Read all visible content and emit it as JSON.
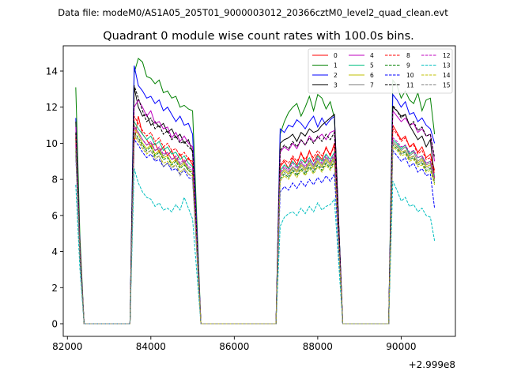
{
  "header": {
    "data_file": "Data file: modeM0/AS1A05_205T01_9000003012_20366cztM0_level2_quad_clean.evt"
  },
  "chart_data": {
    "type": "line",
    "title": "Quadrant 0 module wise count rates with 100.0s bins.",
    "xlabel": "",
    "ylabel": "",
    "x_offset_label": "+2.999e8",
    "xlim": [
      81900,
      91300
    ],
    "ylim": [
      -0.7,
      15.4
    ],
    "xticks": [
      82000,
      84000,
      86000,
      88000,
      90000
    ],
    "xtick_labels": [
      "82000",
      "84000",
      "86000",
      "88000",
      "90000"
    ],
    "yticks": [
      0,
      2,
      4,
      6,
      8,
      10,
      12,
      14
    ],
    "ytick_labels": [
      "0",
      "2",
      "4",
      "6",
      "8",
      "10",
      "12",
      "14"
    ],
    "grid": false,
    "legend_position": "top-right",
    "segments": [
      {
        "start": 82200,
        "n": 2,
        "gap_before": null
      },
      {
        "start": 83600,
        "n": 15,
        "gap_before": [
          82400,
          83500
        ]
      },
      {
        "start": 87100,
        "n": 14,
        "gap_before": [
          85200,
          87000
        ]
      },
      {
        "start": 89800,
        "n": 11,
        "gap_before": [
          88600,
          89700
        ]
      }
    ],
    "series": [
      {
        "name": "0",
        "color": "#ff0000",
        "dash": "solid",
        "seg1": [
          10.5,
          4.0
        ],
        "seg2": [
          10.0,
          11.5,
          10.5,
          10.2,
          9.8,
          10.0,
          9.5,
          9.8,
          9.3,
          9.6,
          9.0,
          9.4,
          8.9,
          9.2,
          8.8
        ],
        "seg3": [
          8.7,
          9.0,
          8.6,
          9.2,
          8.8,
          9.5,
          8.9,
          9.6,
          9.0,
          9.4,
          9.1,
          9.8,
          9.3,
          10.0
        ],
        "seg4": [
          11.0,
          10.6,
          10.2,
          10.4,
          9.8,
          10.0,
          9.5,
          9.8,
          9.2,
          9.4,
          8.5
        ]
      },
      {
        "name": "1",
        "color": "#008000",
        "dash": "solid",
        "seg1": [
          13.1,
          4.8
        ],
        "seg2": [
          13.9,
          14.7,
          14.5,
          13.7,
          13.6,
          13.3,
          13.5,
          12.8,
          12.9,
          12.5,
          12.6,
          12.0,
          12.1,
          11.9,
          11.8
        ],
        "seg3": [
          10.5,
          11.2,
          11.7,
          12.0,
          12.2,
          11.5,
          12.0,
          12.6,
          11.8,
          12.7,
          12.5,
          11.9,
          12.3,
          11.4
        ],
        "seg4": [
          13.5,
          13.2,
          12.5,
          12.9,
          12.4,
          12.2,
          12.8,
          11.8,
          12.4,
          12.5,
          10.5
        ]
      },
      {
        "name": "2",
        "color": "#0000ff",
        "dash": "solid",
        "seg1": [
          11.4,
          4.3
        ],
        "seg2": [
          14.3,
          13.2,
          12.9,
          12.5,
          12.6,
          12.2,
          12.4,
          11.8,
          12.0,
          11.6,
          11.2,
          11.5,
          11.0,
          11.1,
          10.5
        ],
        "seg3": [
          10.8,
          10.6,
          11.0,
          10.9,
          11.3,
          11.1,
          10.8,
          11.2,
          11.5,
          10.9,
          11.4,
          11.0,
          11.3,
          11.5
        ],
        "seg4": [
          12.7,
          12.4,
          12.0,
          12.3,
          11.6,
          11.7,
          11.2,
          11.4,
          11.0,
          10.8,
          10.0
        ]
      },
      {
        "name": "3",
        "color": "#000000",
        "dash": "solid",
        "seg1": [
          11.2,
          4.2
        ],
        "seg2": [
          13.1,
          12.0,
          11.5,
          11.6,
          11.0,
          11.2,
          10.9,
          11.1,
          10.6,
          10.8,
          10.3,
          10.5,
          10.0,
          10.2,
          9.5
        ],
        "seg3": [
          10.0,
          10.2,
          10.3,
          10.5,
          10.1,
          10.6,
          10.4,
          10.8,
          10.6,
          10.7,
          11.0,
          11.2,
          11.4,
          11.6
        ],
        "seg4": [
          12.0,
          11.8,
          11.5,
          11.6,
          11.0,
          10.6,
          10.2,
          10.4,
          9.8,
          10.2,
          8.0
        ]
      },
      {
        "name": "4",
        "color": "#bf00bf",
        "dash": "solid",
        "seg1": [
          10.9,
          4.1
        ],
        "seg2": [
          12.0,
          12.4,
          12.0,
          11.5,
          11.8,
          11.1,
          11.2,
          10.8,
          10.9,
          10.3,
          10.6,
          10.1,
          10.4,
          10.0,
          9.8
        ],
        "seg3": [
          9.5,
          9.8,
          9.6,
          10.0,
          9.7,
          10.2,
          9.9,
          10.4,
          10.1,
          10.3,
          10.5,
          10.2,
          10.6,
          10.7
        ],
        "seg4": [
          11.8,
          11.5,
          11.2,
          11.4,
          11.0,
          11.1,
          10.6,
          10.8,
          10.4,
          10.5,
          9.0
        ]
      },
      {
        "name": "5",
        "color": "#00bf80",
        "dash": "solid",
        "seg1": [
          10.2,
          3.9
        ],
        "seg2": [
          11.2,
          10.8,
          10.5,
          10.2,
          10.4,
          9.9,
          10.1,
          9.6,
          9.8,
          9.4,
          9.5,
          9.1,
          9.3,
          8.9,
          8.7
        ],
        "seg3": [
          8.5,
          8.8,
          8.6,
          9.0,
          8.7,
          9.1,
          8.9,
          9.2,
          8.8,
          9.3,
          9.0,
          9.4,
          9.1,
          9.5
        ],
        "seg4": [
          10.2,
          10.0,
          9.7,
          9.9,
          9.4,
          9.6,
          9.2,
          9.3,
          8.9,
          9.0,
          8.2
        ]
      },
      {
        "name": "6",
        "color": "#bfbf00",
        "dash": "solid",
        "seg1": [
          9.8,
          3.8
        ],
        "seg2": [
          10.8,
          10.5,
          10.0,
          9.7,
          9.9,
          9.4,
          9.6,
          9.2,
          9.3,
          8.9,
          9.1,
          8.7,
          8.9,
          8.5,
          8.4
        ],
        "seg3": [
          8.2,
          8.5,
          8.3,
          8.7,
          8.4,
          8.8,
          8.5,
          8.9,
          8.6,
          9.0,
          8.7,
          9.1,
          8.8,
          9.2
        ],
        "seg4": [
          10.0,
          9.8,
          9.5,
          9.6,
          9.2,
          9.3,
          8.9,
          9.1,
          8.7,
          8.8,
          8.0
        ]
      },
      {
        "name": "7",
        "color": "#808080",
        "dash": "solid",
        "seg1": [
          10.0,
          3.8
        ],
        "seg2": [
          11.0,
          10.6,
          10.2,
          9.9,
          10.0,
          9.6,
          9.7,
          9.3,
          9.5,
          9.1,
          9.2,
          8.8,
          9.0,
          8.6,
          8.5
        ],
        "seg3": [
          8.3,
          8.6,
          8.4,
          8.7,
          8.5,
          8.9,
          8.6,
          9.0,
          8.7,
          9.1,
          8.8,
          9.2,
          8.9,
          9.3
        ],
        "seg4": [
          10.1,
          9.9,
          9.6,
          9.8,
          9.3,
          9.5,
          9.0,
          9.2,
          8.8,
          8.9,
          8.1
        ]
      },
      {
        "name": "8",
        "color": "#ff0000",
        "dash": "dashed",
        "seg1": [
          10.3,
          4.0
        ],
        "seg2": [
          11.5,
          11.1,
          10.7,
          10.4,
          10.6,
          10.1,
          10.3,
          9.8,
          10.0,
          9.6,
          9.7,
          9.3,
          9.5,
          9.1,
          9.0
        ],
        "seg3": [
          8.8,
          9.1,
          8.9,
          9.3,
          9.0,
          9.4,
          9.1,
          9.5,
          9.2,
          9.6,
          9.3,
          9.7,
          9.4,
          9.8
        ],
        "seg4": [
          10.8,
          10.5,
          10.1,
          10.3,
          9.8,
          9.9,
          9.4,
          9.6,
          9.1,
          9.2,
          8.3
        ]
      },
      {
        "name": "9",
        "color": "#008000",
        "dash": "dashed",
        "seg1": [
          9.6,
          3.7
        ],
        "seg2": [
          10.6,
          10.3,
          9.9,
          9.6,
          9.8,
          9.3,
          9.5,
          9.1,
          9.2,
          8.8,
          9.0,
          8.6,
          8.8,
          8.5,
          8.3
        ],
        "seg3": [
          8.0,
          8.3,
          8.1,
          8.5,
          8.2,
          8.6,
          8.3,
          8.7,
          8.4,
          8.8,
          8.5,
          8.9,
          8.6,
          9.0
        ],
        "seg4": [
          9.9,
          9.7,
          9.4,
          9.5,
          9.1,
          9.2,
          8.8,
          8.9,
          8.5,
          8.6,
          7.8
        ]
      },
      {
        "name": "10",
        "color": "#0000ff",
        "dash": "dashed",
        "seg1": [
          9.3,
          3.6
        ],
        "seg2": [
          10.2,
          9.9,
          9.5,
          9.2,
          9.4,
          9.0,
          9.1,
          8.7,
          8.9,
          8.5,
          8.6,
          8.3,
          8.5,
          8.1,
          8.0
        ],
        "seg3": [
          7.3,
          7.6,
          7.4,
          7.8,
          7.5,
          7.9,
          7.6,
          8.0,
          7.7,
          8.1,
          7.8,
          8.2,
          7.9,
          8.3
        ],
        "seg4": [
          9.6,
          9.3,
          9.0,
          9.2,
          8.7,
          8.9,
          8.4,
          8.6,
          8.2,
          8.3,
          6.4
        ]
      },
      {
        "name": "11",
        "color": "#000000",
        "dash": "dashed",
        "seg1": [
          10.6,
          4.0
        ],
        "seg2": [
          13.2,
          12.5,
          11.8,
          11.2,
          11.4,
          10.8,
          11.0,
          10.5,
          10.7,
          10.2,
          10.4,
          10.0,
          10.1,
          9.8,
          9.6
        ],
        "seg3": [
          9.6,
          9.9,
          9.7,
          10.1,
          9.8,
          10.2,
          9.9,
          10.3,
          10.0,
          10.4,
          10.1,
          10.5,
          10.2,
          10.6
        ],
        "seg4": [
          12.1,
          11.8,
          11.4,
          11.6,
          11.0,
          11.2,
          10.7,
          10.9,
          10.4,
          10.5,
          9.2
        ]
      },
      {
        "name": "12",
        "color": "#bf00bf",
        "dash": "dashed",
        "seg1": [
          9.9,
          3.8
        ],
        "seg2": [
          10.9,
          10.6,
          10.2,
          9.9,
          10.1,
          9.6,
          9.8,
          9.4,
          9.5,
          9.1,
          9.3,
          8.9,
          9.1,
          8.7,
          8.6
        ],
        "seg3": [
          8.4,
          8.7,
          8.5,
          8.9,
          8.6,
          9.0,
          8.7,
          9.1,
          8.8,
          9.2,
          8.9,
          9.3,
          9.0,
          9.4
        ],
        "seg4": [
          10.3,
          10.1,
          9.8,
          9.9,
          9.5,
          9.6,
          9.2,
          9.3,
          8.9,
          9.0,
          8.1
        ]
      },
      {
        "name": "13",
        "color": "#00bfbf",
        "dash": "dashed",
        "seg1": [
          7.7,
          3.0
        ],
        "seg2": [
          8.6,
          7.8,
          7.3,
          7.0,
          6.9,
          6.5,
          6.7,
          6.3,
          6.4,
          6.2,
          6.6,
          6.3,
          7.0,
          6.4,
          5.8
        ],
        "seg3": [
          5.4,
          5.9,
          6.1,
          6.2,
          6.0,
          6.4,
          6.1,
          6.5,
          6.2,
          6.7,
          6.3,
          6.5,
          6.6,
          6.9
        ],
        "seg4": [
          7.9,
          7.4,
          6.8,
          7.0,
          6.5,
          6.6,
          6.2,
          6.4,
          6.0,
          5.9,
          4.6
        ]
      },
      {
        "name": "14",
        "color": "#bfbf00",
        "dash": "dashed",
        "seg1": [
          9.5,
          3.7
        ],
        "seg2": [
          10.4,
          10.1,
          9.7,
          9.4,
          9.6,
          9.2,
          9.3,
          8.9,
          9.0,
          8.7,
          8.8,
          8.4,
          8.6,
          8.3,
          8.2
        ],
        "seg3": [
          7.9,
          8.2,
          8.0,
          8.4,
          8.1,
          8.5,
          8.2,
          8.6,
          8.3,
          8.7,
          8.4,
          8.8,
          8.5,
          8.9
        ],
        "seg4": [
          9.8,
          9.6,
          9.3,
          9.4,
          9.0,
          9.1,
          8.7,
          8.8,
          8.4,
          8.5,
          7.7
        ]
      },
      {
        "name": "15",
        "color": "#808080",
        "dash": "dashed",
        "seg1": [
          9.7,
          3.7
        ],
        "seg2": [
          10.5,
          10.2,
          9.8,
          9.5,
          9.6,
          9.1,
          9.3,
          8.7,
          8.9,
          8.6,
          8.8,
          8.2,
          8.6,
          8.3,
          8.1
        ],
        "seg3": [
          8.1,
          8.4,
          8.2,
          8.6,
          8.3,
          8.7,
          8.4,
          8.8,
          8.5,
          8.9,
          8.6,
          9.0,
          8.7,
          9.1
        ],
        "seg4": [
          10.0,
          9.8,
          9.4,
          9.6,
          9.1,
          9.3,
          8.8,
          9.0,
          8.6,
          8.7,
          7.9
        ]
      }
    ]
  }
}
